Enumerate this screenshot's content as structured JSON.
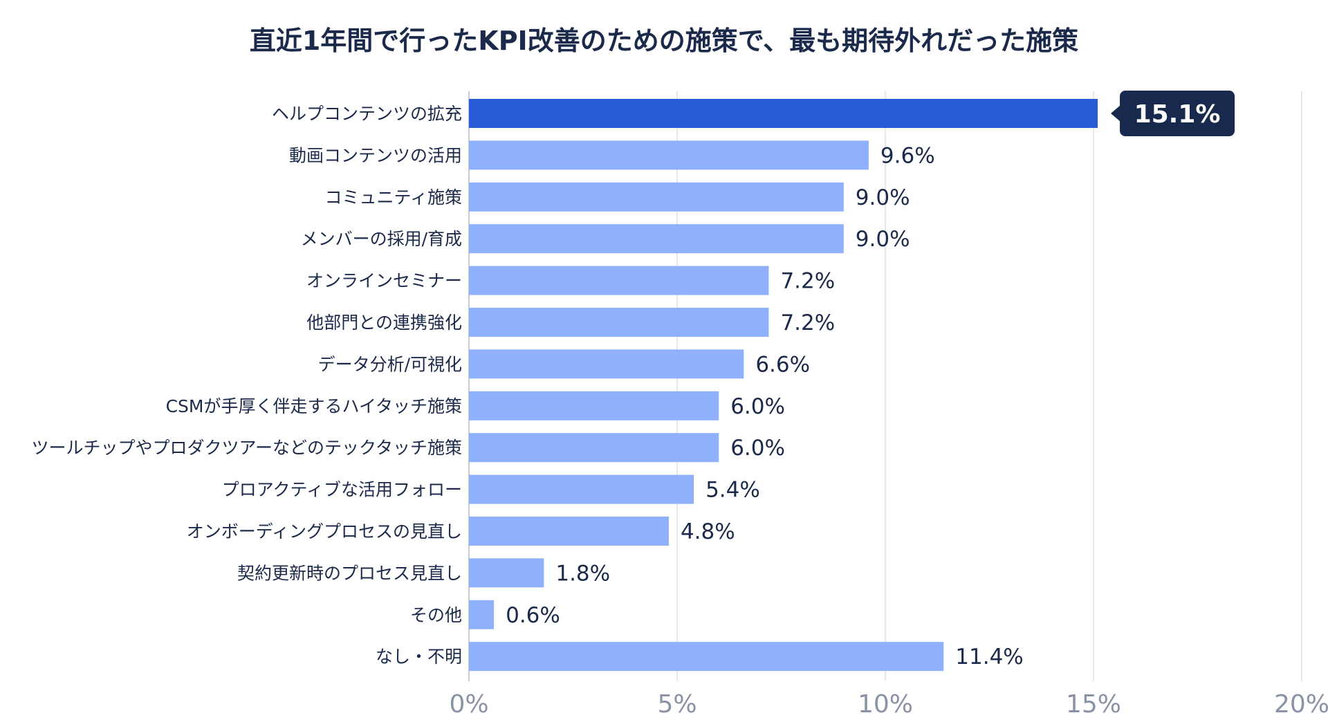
{
  "chart_data": {
    "type": "bar",
    "orientation": "horizontal",
    "title": "直近1年間で行ったKPI改善のための施策で、最も期待外れだった施策",
    "categories": [
      "ヘルプコンテンツの拡充",
      "動画コンテンツの活用",
      "コミュニティ施策",
      "メンバーの採用/育成",
      "オンラインセミナー",
      "他部門との連携強化",
      "データ分析/可視化",
      "CSMが手厚く伴走するハイタッチ施策",
      "ツールチップやプロダクツアーなどのテックタッチ施策",
      "プロアクティブな活用フォロー",
      "オンボーディングプロセスの見直し",
      "契約更新時のプロセス見直し",
      "その他",
      "なし・不明"
    ],
    "values": [
      15.1,
      9.6,
      9.0,
      9.0,
      7.2,
      7.2,
      6.6,
      6.0,
      6.0,
      5.4,
      4.8,
      1.8,
      0.6,
      11.4
    ],
    "value_labels": [
      "15.1%",
      "9.6%",
      "9.0%",
      "9.0%",
      "7.2%",
      "7.2%",
      "6.6%",
      "6.0%",
      "6.0%",
      "5.4%",
      "4.8%",
      "1.8%",
      "0.6%",
      "11.4%"
    ],
    "highlight_index": 0,
    "xlim": [
      0,
      20
    ],
    "x_ticks": [
      0,
      5,
      10,
      15,
      20
    ],
    "x_tick_labels": [
      "0%",
      "5%",
      "10%",
      "15%",
      "20%"
    ],
    "grid": true,
    "colors": {
      "bar": "#8fb0fb",
      "highlight_bar": "#2a5bd7",
      "callout_bg": "#17294d",
      "callout_text": "#ffffff",
      "label_text": "#1b2a4a",
      "tick_text": "#8a93a6",
      "gridline": "#dcdfe5",
      "axis": "#c5cad3"
    }
  }
}
